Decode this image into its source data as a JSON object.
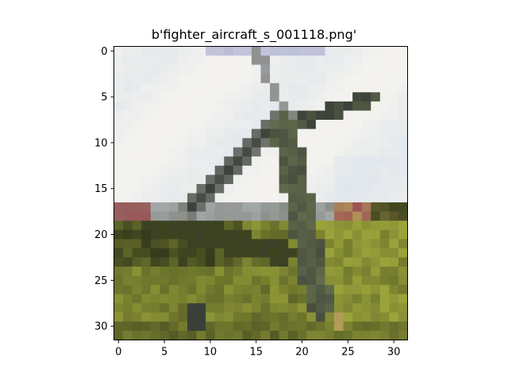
{
  "figure": {
    "title": "b'fighter_aircraft_s_001118.png'"
  },
  "image": {
    "description_tag": "pixelated low-resolution photo of a fighter aircraft on grass",
    "grid": 32,
    "palette": {
      "sky_light": "#f3f2ee",
      "sky_blue": "#d9e2ec",
      "sky_lavender": "#b9bcd6",
      "aircraft_gray": "#8a8d88",
      "aircraft_dark": "#3a3f38",
      "aircraft_olive": "#6b7550",
      "grass_olive": "#7c8a2e",
      "grass_yellow": "#9aa33a",
      "grass_dark": "#3d431e",
      "horizon_red": "#9b5556",
      "horizon_tan": "#b39b57"
    }
  },
  "axes": {
    "x_ticks": [
      "0",
      "5",
      "10",
      "15",
      "20",
      "25",
      "30"
    ],
    "y_ticks": [
      "0",
      "5",
      "10",
      "15",
      "20",
      "25",
      "30"
    ]
  }
}
